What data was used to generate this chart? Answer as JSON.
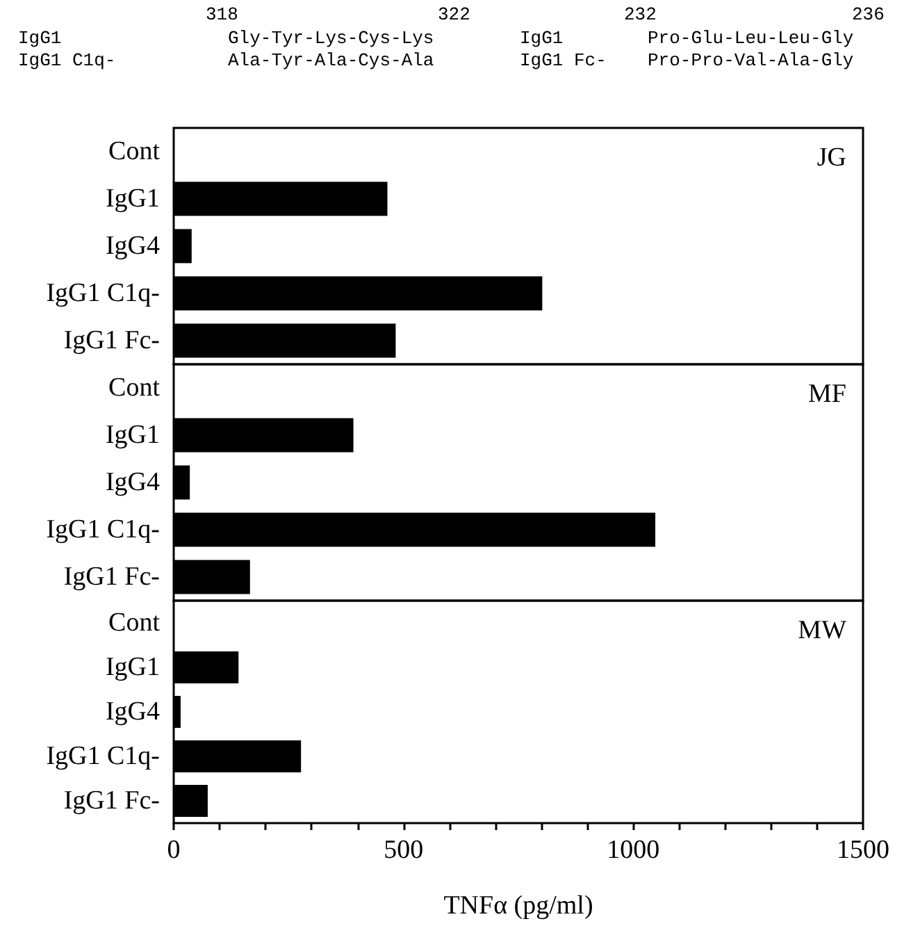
{
  "chart_data": [
    {
      "type": "bar",
      "orientation": "horizontal",
      "title": "JG",
      "categories": [
        "Cont",
        "IgG1",
        "IgG4",
        "IgG1 C1q-",
        "IgG1 Fc-"
      ],
      "values": [
        0,
        465,
        39,
        802,
        483
      ],
      "color": "#000000",
      "xlim": [
        0,
        1500
      ],
      "tick_labels": "y",
      "annotations": [
        "318",
        "322",
        "232",
        "236",
        "IgG1",
        "Gly-Tyr-Lys-Cys-Lys",
        "IgG1",
        "Pro-Glu-Leu-Leu-Gly",
        "IgG1 C1q-",
        "Ala-Tyr-Ala-Cys-Ala",
        "IgG1 Fc-",
        "Pro-Pro-Val-Ala-Gly"
      ]
    },
    {
      "type": "bar",
      "orientation": "horizontal",
      "title": "MF",
      "categories": [
        "Cont",
        "IgG1",
        "IgG4",
        "IgG1 C1q-",
        "IgG1 Fc-"
      ],
      "values": [
        0,
        391,
        35,
        1048,
        166
      ],
      "color": "#000000",
      "xlim": [
        0,
        1500
      ],
      "tick_labels": "y"
    },
    {
      "type": "bar",
      "orientation": "horizontal",
      "title": "MW",
      "xlabel": "TNFα (pg/ml)",
      "categories": [
        "Cont",
        "IgG1",
        "IgG4",
        "IgG1 C1q-",
        "IgG1 Fc-"
      ],
      "values": [
        0,
        141,
        15,
        277,
        74
      ],
      "color": "#000000",
      "xlim": [
        0,
        1500
      ],
      "xticks": [
        0,
        {
          "value": 100,
          "label": null
        },
        {
          "value": 200,
          "label": null
        },
        {
          "value": 300,
          "label": null
        },
        {
          "value": 400,
          "label": null
        },
        500,
        {
          "value": 600,
          "label": null
        },
        {
          "value": 700,
          "label": null
        },
        {
          "value": 800,
          "label": null
        },
        {
          "value": 900,
          "label": null
        },
        1000,
        {
          "value": 1100,
          "label": null
        },
        {
          "value": 1200,
          "label": null
        },
        {
          "value": 1300,
          "label": null
        },
        {
          "value": 1400,
          "label": null
        },
        1500
      ]
    }
  ]
}
